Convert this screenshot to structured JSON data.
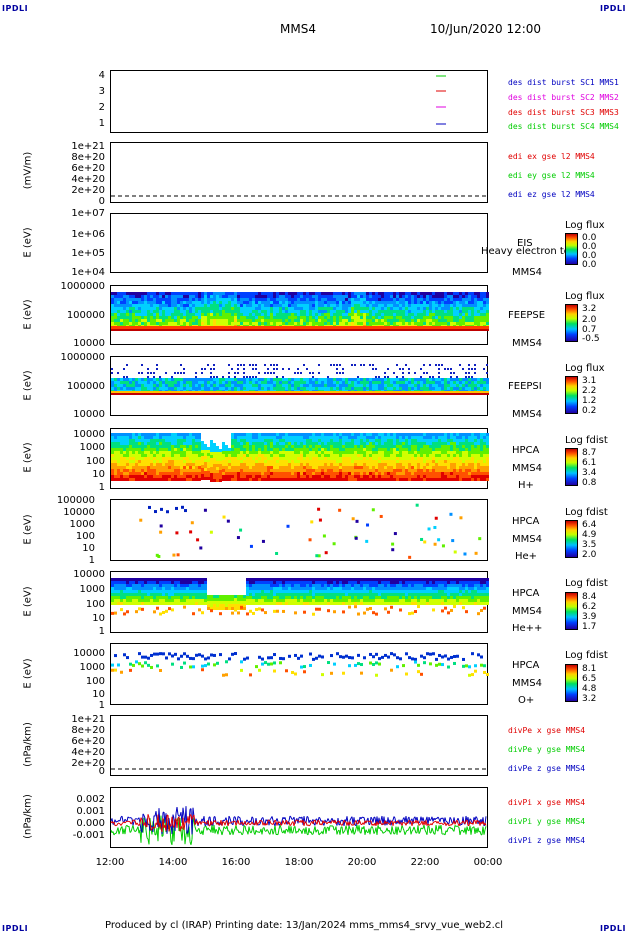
{
  "corners": {
    "tl": "IPDLI",
    "tr": "IPDLI",
    "bl": "IPDLI",
    "br": "IPDLI"
  },
  "header": {
    "title": "MMS4",
    "date": "10/Jun/2020 12:00"
  },
  "x_ticks": [
    "12:00",
    "14:00",
    "16:00",
    "18:00",
    "20:00",
    "22:00",
    "00:00"
  ],
  "footer": "Produced by cl (IRAP)   Printing date: 13/Jan/2024   mms_mms4_srvy_vue_web2.cl",
  "colors": {
    "red": "#e00000",
    "green": "#00cc00",
    "blue": "#0000c0",
    "magenta": "#e000e0"
  },
  "chart_data": [
    {
      "type": "line",
      "id": "p1",
      "yticks": [
        "4",
        "3",
        "2",
        "1"
      ],
      "ylim": [
        0.5,
        4.5
      ],
      "legend": [
        {
          "name": "des dist burst SC1 MMS1",
          "color": "#0000c0"
        },
        {
          "name": "des dist burst SC2 MMS2",
          "color": "#e000e0"
        },
        {
          "name": "des dist burst SC3 MMS3",
          "color": "#e00000"
        },
        {
          "name": "des dist burst SC4 MMS4",
          "color": "#00cc00"
        }
      ]
    },
    {
      "type": "line",
      "id": "p2",
      "ylabel": "(mV/m)",
      "yticks": [
        "1e+21",
        "8e+20",
        "6e+20",
        "4e+20",
        "2e+20",
        "0"
      ],
      "legend": [
        {
          "name": "edi ex gse l2 MMS4",
          "color": "#e00000"
        },
        {
          "name": "edi ey gse l2 MMS4",
          "color": "#00cc00"
        },
        {
          "name": "edi ez gse l2 MMS4",
          "color": "#0000c0"
        }
      ]
    },
    {
      "type": "heatmap",
      "id": "p3",
      "ylabel": "E (eV)",
      "yticks": [
        "1e+07",
        "1e+06",
        "1e+05",
        "1e+04"
      ],
      "instrument": [
        "EIS",
        "MMS4"
      ],
      "overlay": "Heavy electron to",
      "cbar_title": "Log flux",
      "cbar_ticks": [
        "0.0",
        "0.0",
        "0.0",
        "0.0"
      ]
    },
    {
      "type": "heatmap",
      "id": "p4",
      "ylabel": "E (eV)",
      "yticks": [
        "1000000",
        "100000",
        "10000"
      ],
      "instrument": [
        "FEEPSE",
        "MMS4"
      ],
      "cbar_title": "Log flux",
      "cbar_ticks": [
        "3.2",
        "2.0",
        "0.7",
        "-0.5"
      ]
    },
    {
      "type": "heatmap",
      "id": "p5",
      "ylabel": "E (eV)",
      "yticks": [
        "1000000",
        "100000",
        "10000"
      ],
      "instrument": [
        "FEEPSI",
        "MMS4"
      ],
      "cbar_title": "Log flux",
      "cbar_ticks": [
        "3.1",
        "2.2",
        "1.2",
        "0.2"
      ]
    },
    {
      "type": "heatmap",
      "id": "p6",
      "ylabel": "E (eV)",
      "yticks": [
        "10000",
        "1000",
        "100",
        "10",
        "1"
      ],
      "instrument": [
        "HPCA",
        "MMS4",
        "H+"
      ],
      "cbar_title": "Log fdist",
      "cbar_ticks": [
        "8.7",
        "6.1",
        "3.4",
        "0.8"
      ]
    },
    {
      "type": "heatmap",
      "id": "p7",
      "ylabel": "E (eV)",
      "yticks": [
        "100000",
        "10000",
        "1000",
        "100",
        "10",
        "1"
      ],
      "instrument": [
        "HPCA",
        "MMS4",
        "He+"
      ],
      "cbar_title": "Log fdist",
      "cbar_ticks": [
        "6.4",
        "4.9",
        "3.5",
        "2.0"
      ]
    },
    {
      "type": "heatmap",
      "id": "p8",
      "ylabel": "E (eV)",
      "yticks": [
        "10000",
        "1000",
        "100",
        "10",
        "1"
      ],
      "instrument": [
        "HPCA",
        "MMS4",
        "He++"
      ],
      "cbar_title": "Log fdist",
      "cbar_ticks": [
        "8.4",
        "6.2",
        "3.9",
        "1.7"
      ]
    },
    {
      "type": "heatmap",
      "id": "p9",
      "ylabel": "E (eV)",
      "yticks": [
        "10000",
        "1000",
        "100",
        "10",
        "1"
      ],
      "instrument": [
        "HPCA",
        "MMS4",
        "O+"
      ],
      "cbar_title": "Log fdist",
      "cbar_ticks": [
        "8.1",
        "6.5",
        "4.8",
        "3.2"
      ]
    },
    {
      "type": "line",
      "id": "p10",
      "ylabel": "(nPa/km)",
      "yticks": [
        "1e+21",
        "8e+20",
        "6e+20",
        "4e+20",
        "2e+20",
        "0"
      ],
      "legend": [
        {
          "name": "divPe x gse MMS4",
          "color": "#e00000"
        },
        {
          "name": "divPe y gse MMS4",
          "color": "#00cc00"
        },
        {
          "name": "divPe z gse MMS4",
          "color": "#0000c0"
        }
      ]
    },
    {
      "type": "line",
      "id": "p11",
      "ylabel": "(nPa/km)",
      "yticks": [
        "0.002",
        "0.001",
        "0.000",
        "-0.001"
      ],
      "ylim": [
        -0.0016,
        0.0026
      ],
      "legend": [
        {
          "name": "divPi x gse MMS4",
          "color": "#e00000"
        },
        {
          "name": "divPi y gse MMS4",
          "color": "#00cc00"
        },
        {
          "name": "divPi z gse MMS4",
          "color": "#0000c0"
        }
      ]
    }
  ]
}
